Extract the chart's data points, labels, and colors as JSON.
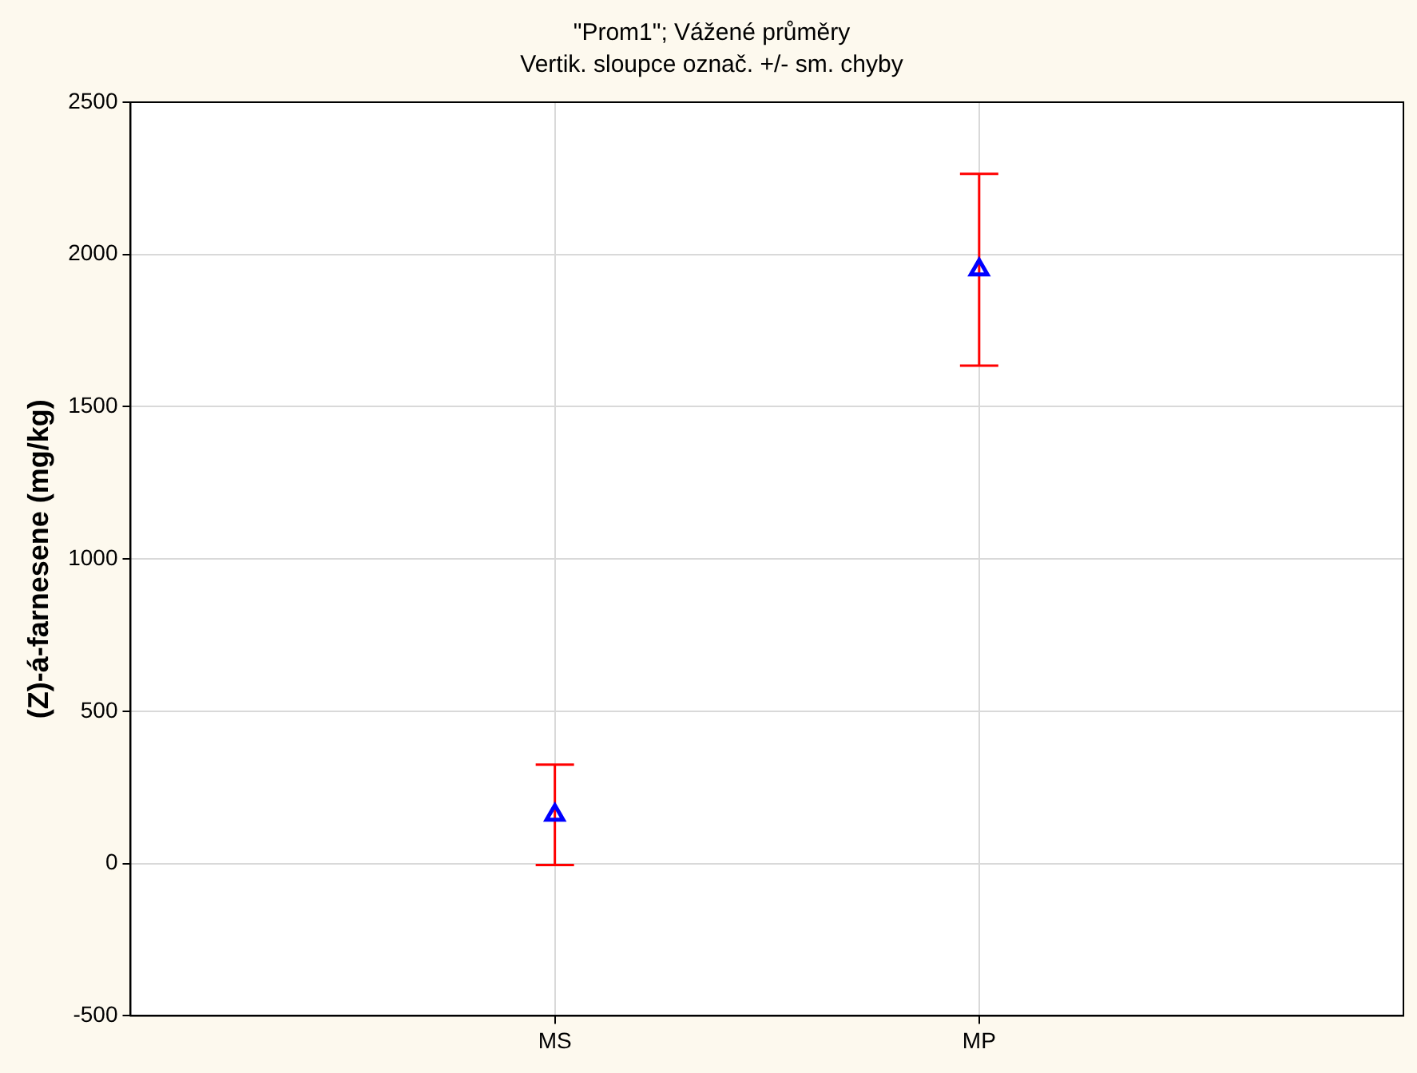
{
  "chart_data": {
    "type": "scatter",
    "title": "\"Prom1\"; Vážené průměry",
    "subtitle": "Vertik. sloupce označ. +/- sm. chyby",
    "ylabel": "(Z)-á-farnesene (mg/kg)",
    "categories": [
      "MS",
      "MP"
    ],
    "series": [
      {
        "color": "#0000ff",
        "values": [
          160,
          1950
        ],
        "errors": [
          165,
          315
        ]
      }
    ],
    "marker": "triangle",
    "ylim": [
      -500,
      2500
    ],
    "yticks": [
      -500,
      0,
      500,
      1000,
      1500,
      2000,
      2500
    ],
    "grid": true,
    "legend": false
  }
}
